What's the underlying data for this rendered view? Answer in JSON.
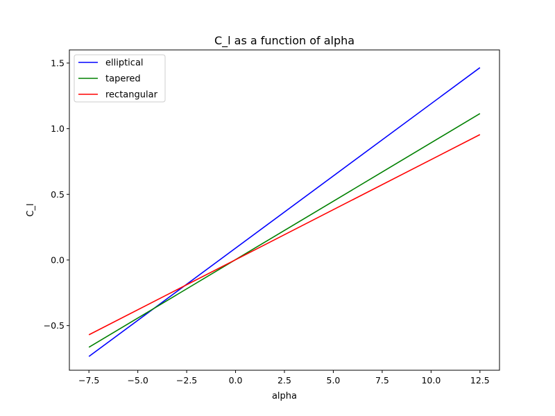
{
  "chart_data": {
    "type": "line",
    "title": "C_l as a function of alpha",
    "xlabel": "alpha",
    "ylabel": "C_l",
    "xlim": [
      -8.5,
      13.5
    ],
    "ylim": [
      -0.84,
      1.6
    ],
    "xticks": [
      -7.5,
      -5.0,
      -2.5,
      0.0,
      2.5,
      5.0,
      7.5,
      10.0,
      12.5
    ],
    "xtick_labels": [
      "−7.5",
      "−5.0",
      "−2.5",
      "0.0",
      "2.5",
      "5.0",
      "7.5",
      "10.0",
      "12.5"
    ],
    "yticks": [
      -0.5,
      0.0,
      0.5,
      1.0,
      1.5
    ],
    "ytick_labels": [
      "−0.5",
      "0.0",
      "0.5",
      "1.0",
      "1.5"
    ],
    "grid": false,
    "legend_position": "top-left",
    "series": [
      {
        "name": "elliptical",
        "color": "#0000ff",
        "x": [
          -7.5,
          12.5
        ],
        "y": [
          -0.735,
          1.465
        ]
      },
      {
        "name": "tapered",
        "color": "#008000",
        "x": [
          -7.5,
          12.5
        ],
        "y": [
          -0.665,
          1.115
        ]
      },
      {
        "name": "rectangular",
        "color": "#ff0000",
        "x": [
          -7.5,
          12.5
        ],
        "y": [
          -0.57,
          0.955
        ]
      }
    ]
  }
}
